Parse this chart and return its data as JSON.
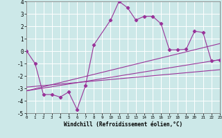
{
  "xlabel": "Windchill (Refroidissement éolien,°C)",
  "xlim": [
    0,
    23
  ],
  "ylim": [
    -5,
    4
  ],
  "xticks": [
    0,
    1,
    2,
    3,
    4,
    5,
    6,
    7,
    8,
    9,
    10,
    11,
    12,
    13,
    14,
    15,
    16,
    17,
    18,
    19,
    20,
    21,
    22,
    23
  ],
  "yticks": [
    -5,
    -4,
    -3,
    -2,
    -1,
    0,
    1,
    2,
    3,
    4
  ],
  "bg_color": "#cce8e8",
  "line_color": "#993399",
  "grid_color": "#ffffff",
  "series1_x": [
    0,
    1,
    2,
    3,
    4,
    5,
    6,
    7,
    8,
    10,
    11,
    12,
    13,
    14,
    15,
    16,
    17,
    18,
    19,
    20,
    21,
    22,
    23
  ],
  "series1_y": [
    0,
    -1,
    -3.5,
    -3.5,
    -3.7,
    -3.3,
    -4.7,
    -2.8,
    0.5,
    2.5,
    4.0,
    3.5,
    2.5,
    2.8,
    2.8,
    2.2,
    0.1,
    0.1,
    0.15,
    1.6,
    1.5,
    -0.8,
    -0.7
  ],
  "series2_x": [
    0,
    23
  ],
  "series2_y": [
    -3.2,
    -0.7
  ],
  "series3_x": [
    0,
    23
  ],
  "series3_y": [
    -3.2,
    0.6
  ],
  "series4_x": [
    0,
    23
  ],
  "series4_y": [
    -2.9,
    -1.5
  ]
}
